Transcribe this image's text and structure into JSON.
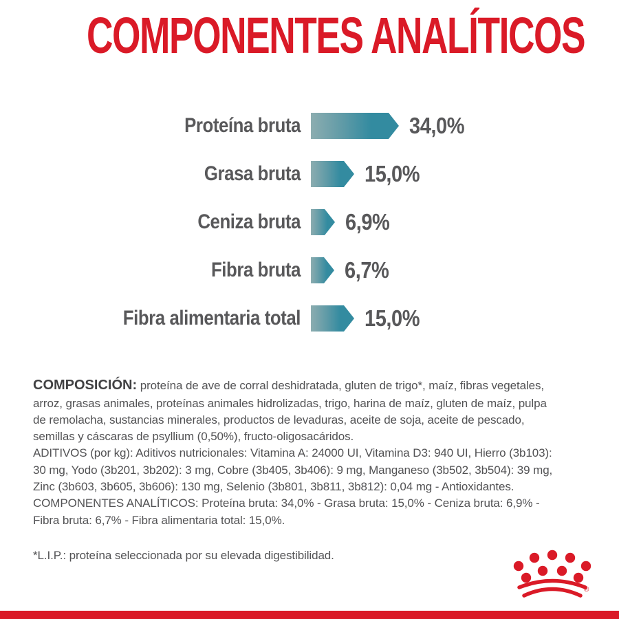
{
  "title": "COMPONENTES ANALÍTICOS",
  "colors": {
    "brand_red": "#da1a27",
    "bar_teal": "#338ba0",
    "bar_gradient_start": "#8cadb0",
    "label_gray": "#58585a",
    "body_text": "#525254"
  },
  "chart_data": {
    "type": "bar",
    "orientation": "horizontal",
    "title": "COMPONENTES ANALÍTICOS",
    "categories": [
      "Proteína bruta",
      "Grasa bruta",
      "Ceniza bruta",
      "Fibra bruta",
      "Fibra alimentaria total"
    ],
    "values": [
      34.0,
      15.0,
      6.9,
      6.7,
      15.0
    ],
    "value_labels": [
      "34,0%",
      "15,0%",
      "6,9%",
      "6,7%",
      "15,0%"
    ],
    "unit": "%",
    "bar_style": "right-pointing-arrow",
    "grid": false,
    "legend": "none"
  },
  "sections": {
    "composition": {
      "heading": "COMPOSICIÓN:",
      "text": "proteína de ave de corral deshidratada, gluten de trigo*, maíz, fibras vegetales, arroz, grasas animales, proteínas animales hidrolizadas, trigo, harina de maíz, gluten de maíz, pulpa de remolacha, sustancias minerales, productos de levaduras, aceite de soja, aceite de pescado, semillas y cáscaras de psyllium (0,50%), fructo-oligosacáridos."
    },
    "additives": "ADITIVOS (por kg): Aditivos nutricionales: Vitamina A: 24000 UI, Vitamina D3: 940 UI, Hierro (3b103): 30 mg, Yodo (3b201, 3b202): 3 mg, Cobre (3b405, 3b406): 9 mg, Manganeso (3b502, 3b504): 39 mg, Zinc (3b603, 3b605, 3b606): 130 mg, Selenio (3b801, 3b811, 3b812): 0,04 mg - Antioxidantes.",
    "analytical_components": "COMPONENTES ANALÍTICOS: Proteína bruta: 34,0% - Grasa bruta: 15,0% - Ceniza bruta: 6,9% - Fibra bruta: 6,7% - Fibra alimentaria total: 15,0%.",
    "footnote": "*L.I.P.: proteína seleccionada por su elevada digestibilidad."
  },
  "brand": {
    "logo": "royal-canin-crown",
    "registered_mark": "®"
  }
}
